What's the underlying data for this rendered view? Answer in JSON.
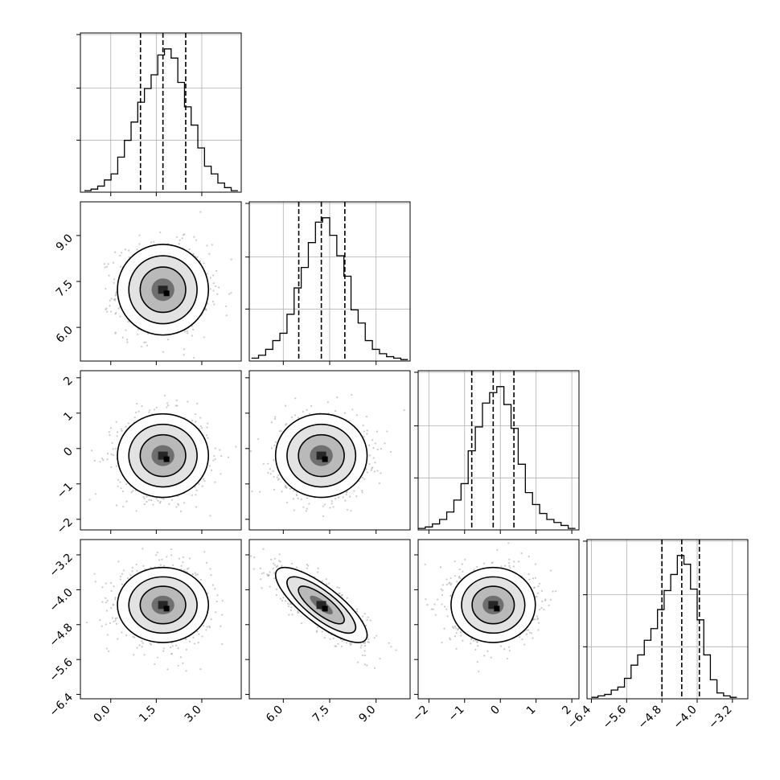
{
  "chart_data": {
    "type": "corner",
    "grid": true,
    "parameters": [
      {
        "range": [
          -1.0,
          4.3
        ],
        "ticks": [
          0.0,
          1.5,
          3.0
        ],
        "tick_labels": [
          "0.0",
          "1.5",
          "3.0"
        ],
        "quantiles": [
          0.98,
          1.72,
          2.47
        ],
        "mean": 1.72,
        "sd": 0.75
      },
      {
        "range": [
          4.9,
          10.1
        ],
        "ticks": [
          6.0,
          7.5,
          9.0
        ],
        "tick_labels": [
          "6.0",
          "7.5",
          "9.0"
        ],
        "quantiles": [
          6.5,
          7.23,
          7.99
        ],
        "mean": 7.23,
        "sd": 0.74
      },
      {
        "range": [
          -2.3,
          2.2
        ],
        "ticks": [
          -2,
          -1,
          0,
          1,
          2
        ],
        "tick_labels": [
          "−2",
          "−1",
          "0",
          "1",
          "2"
        ],
        "quantiles": [
          -0.8,
          -0.2,
          0.38
        ],
        "mean": -0.2,
        "sd": 0.59
      },
      {
        "range": [
          -6.5,
          -2.85
        ],
        "ticks": [
          -6.4,
          -5.6,
          -4.8,
          -4.0,
          -3.2
        ],
        "tick_labels": [
          "−6.4",
          "−5.6",
          "−4.8",
          "−4.0",
          "−3.2"
        ],
        "quantiles": [
          -4.8,
          -4.35,
          -3.95
        ],
        "mean": -4.35,
        "sd": 0.43
      }
    ],
    "histograms": [
      {
        "bins": [
          -0.87,
          -0.65,
          -0.43,
          -0.21,
          0.01,
          0.23,
          0.45,
          0.67,
          0.89,
          1.11,
          1.33,
          1.55,
          1.77,
          1.99,
          2.21,
          2.43,
          2.65,
          2.87,
          3.09,
          3.31,
          3.53,
          3.75,
          3.97,
          4.19
        ],
        "counts": [
          0.01,
          0.02,
          0.04,
          0.08,
          0.12,
          0.23,
          0.34,
          0.46,
          0.59,
          0.68,
          0.77,
          0.9,
          0.94,
          0.88,
          0.72,
          0.56,
          0.44,
          0.29,
          0.17,
          0.12,
          0.06,
          0.03,
          0.01
        ]
      },
      {
        "bins": [
          4.97,
          5.2,
          5.43,
          5.66,
          5.89,
          6.12,
          6.35,
          6.58,
          6.81,
          7.04,
          7.27,
          7.5,
          7.73,
          7.96,
          8.19,
          8.42,
          8.65,
          8.88,
          9.11,
          9.34,
          9.57,
          9.8,
          10.03
        ],
        "counts": [
          0.02,
          0.04,
          0.08,
          0.14,
          0.19,
          0.32,
          0.5,
          0.64,
          0.81,
          0.95,
          0.98,
          0.86,
          0.72,
          0.58,
          0.35,
          0.26,
          0.14,
          0.08,
          0.05,
          0.03,
          0.02,
          0.01
        ]
      },
      {
        "bins": [
          -2.3,
          -2.1,
          -1.9,
          -1.7,
          -1.5,
          -1.3,
          -1.1,
          -0.9,
          -0.7,
          -0.5,
          -0.3,
          -0.1,
          0.1,
          0.3,
          0.5,
          0.7,
          0.9,
          1.1,
          1.3,
          1.5,
          1.7,
          1.9,
          2.1
        ],
        "counts": [
          0.01,
          0.02,
          0.04,
          0.07,
          0.12,
          0.2,
          0.31,
          0.53,
          0.69,
          0.85,
          0.92,
          0.96,
          0.84,
          0.68,
          0.44,
          0.25,
          0.17,
          0.11,
          0.07,
          0.05,
          0.03,
          0.01
        ]
      },
      {
        "bins": [
          -6.4,
          -6.25,
          -6.1,
          -5.95,
          -5.8,
          -5.65,
          -5.5,
          -5.35,
          -5.2,
          -5.05,
          -4.9,
          -4.75,
          -4.6,
          -4.45,
          -4.3,
          -4.15,
          -4.0,
          -3.85,
          -3.7,
          -3.55,
          -3.4,
          -3.25,
          -3.1
        ],
        "counts": [
          0.01,
          0.02,
          0.03,
          0.06,
          0.08,
          0.14,
          0.23,
          0.3,
          0.4,
          0.48,
          0.61,
          0.74,
          0.85,
          0.98,
          0.92,
          0.75,
          0.54,
          0.3,
          0.13,
          0.04,
          0.02,
          0.01
        ]
      }
    ],
    "correlations": {
      "1-0": 0.0,
      "2-0": 0.0,
      "2-1": 0.0,
      "3-0": 0.0,
      "3-1": -0.8,
      "3-2": 0.0
    },
    "scatter_points_per_panel": 900
  },
  "colors": {
    "ink": "#000000",
    "grid": "#b0b0b0",
    "scatter": "#9e9e9e"
  }
}
